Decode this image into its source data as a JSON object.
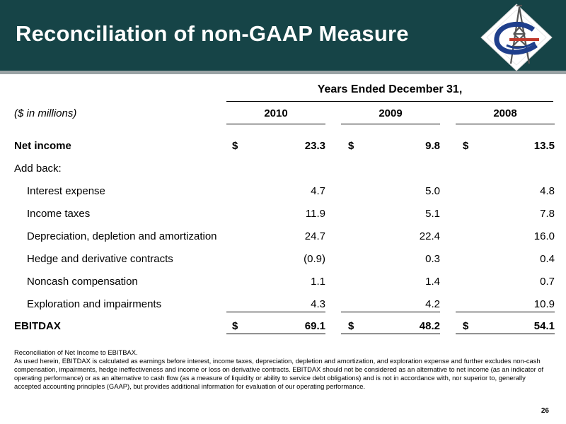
{
  "header": {
    "title": "Reconciliation of non-GAAP Measure"
  },
  "colors": {
    "header_bg": "#164447",
    "accent_red": "#c0392b",
    "logo_blue": "#1f3f8c"
  },
  "table": {
    "column_span_title": "Years Ended December 31,",
    "units_label": "($ in millions)",
    "years": [
      "2010",
      "2009",
      "2008"
    ],
    "currency_symbol": "$",
    "add_back_label": "Add back:",
    "net_income": {
      "label": "Net income",
      "values": [
        "23.3",
        "9.8",
        "13.5"
      ]
    },
    "add_back_rows": [
      {
        "label": "Interest expense",
        "values": [
          "4.7",
          "5.0",
          "4.8"
        ]
      },
      {
        "label": "Income taxes",
        "values": [
          "11.9",
          "5.1",
          "7.8"
        ]
      },
      {
        "label": "Depreciation, depletion and amortization",
        "values": [
          "24.7",
          "22.4",
          "16.0"
        ]
      },
      {
        "label": "Hedge and derivative contracts",
        "values": [
          "(0.9)",
          "0.3",
          "0.4"
        ]
      },
      {
        "label": "Noncash compensation",
        "values": [
          "1.1",
          "1.4",
          "0.7"
        ]
      },
      {
        "label": "Exploration and impairments",
        "values": [
          "4.3",
          "4.2",
          "10.9"
        ]
      }
    ],
    "ebitdax": {
      "label": "EBITDAX",
      "values": [
        "69.1",
        "48.2",
        "54.1"
      ]
    }
  },
  "footnote": {
    "line1": "Reconciliation of Net Income to EBITBAX.",
    "line2": "As used herein, EBITDAX is calculated as earnings before interest, income taxes, depreciation, depletion and amortization, and exploration expense and further excludes non-cash compensation, impairments, hedge ineffectiveness and income or loss on derivative contracts. EBITDAX should not be considered as an alternative to net income (as an indicator of operating performance) or as an alternative to cash flow (as a measure of liquidity or ability to service debt obligations) and is not in accordance with, nor superior to, generally accepted accounting principles (GAAP), but provides additional information for evaluation of our operating performance."
  },
  "page_number": "26"
}
